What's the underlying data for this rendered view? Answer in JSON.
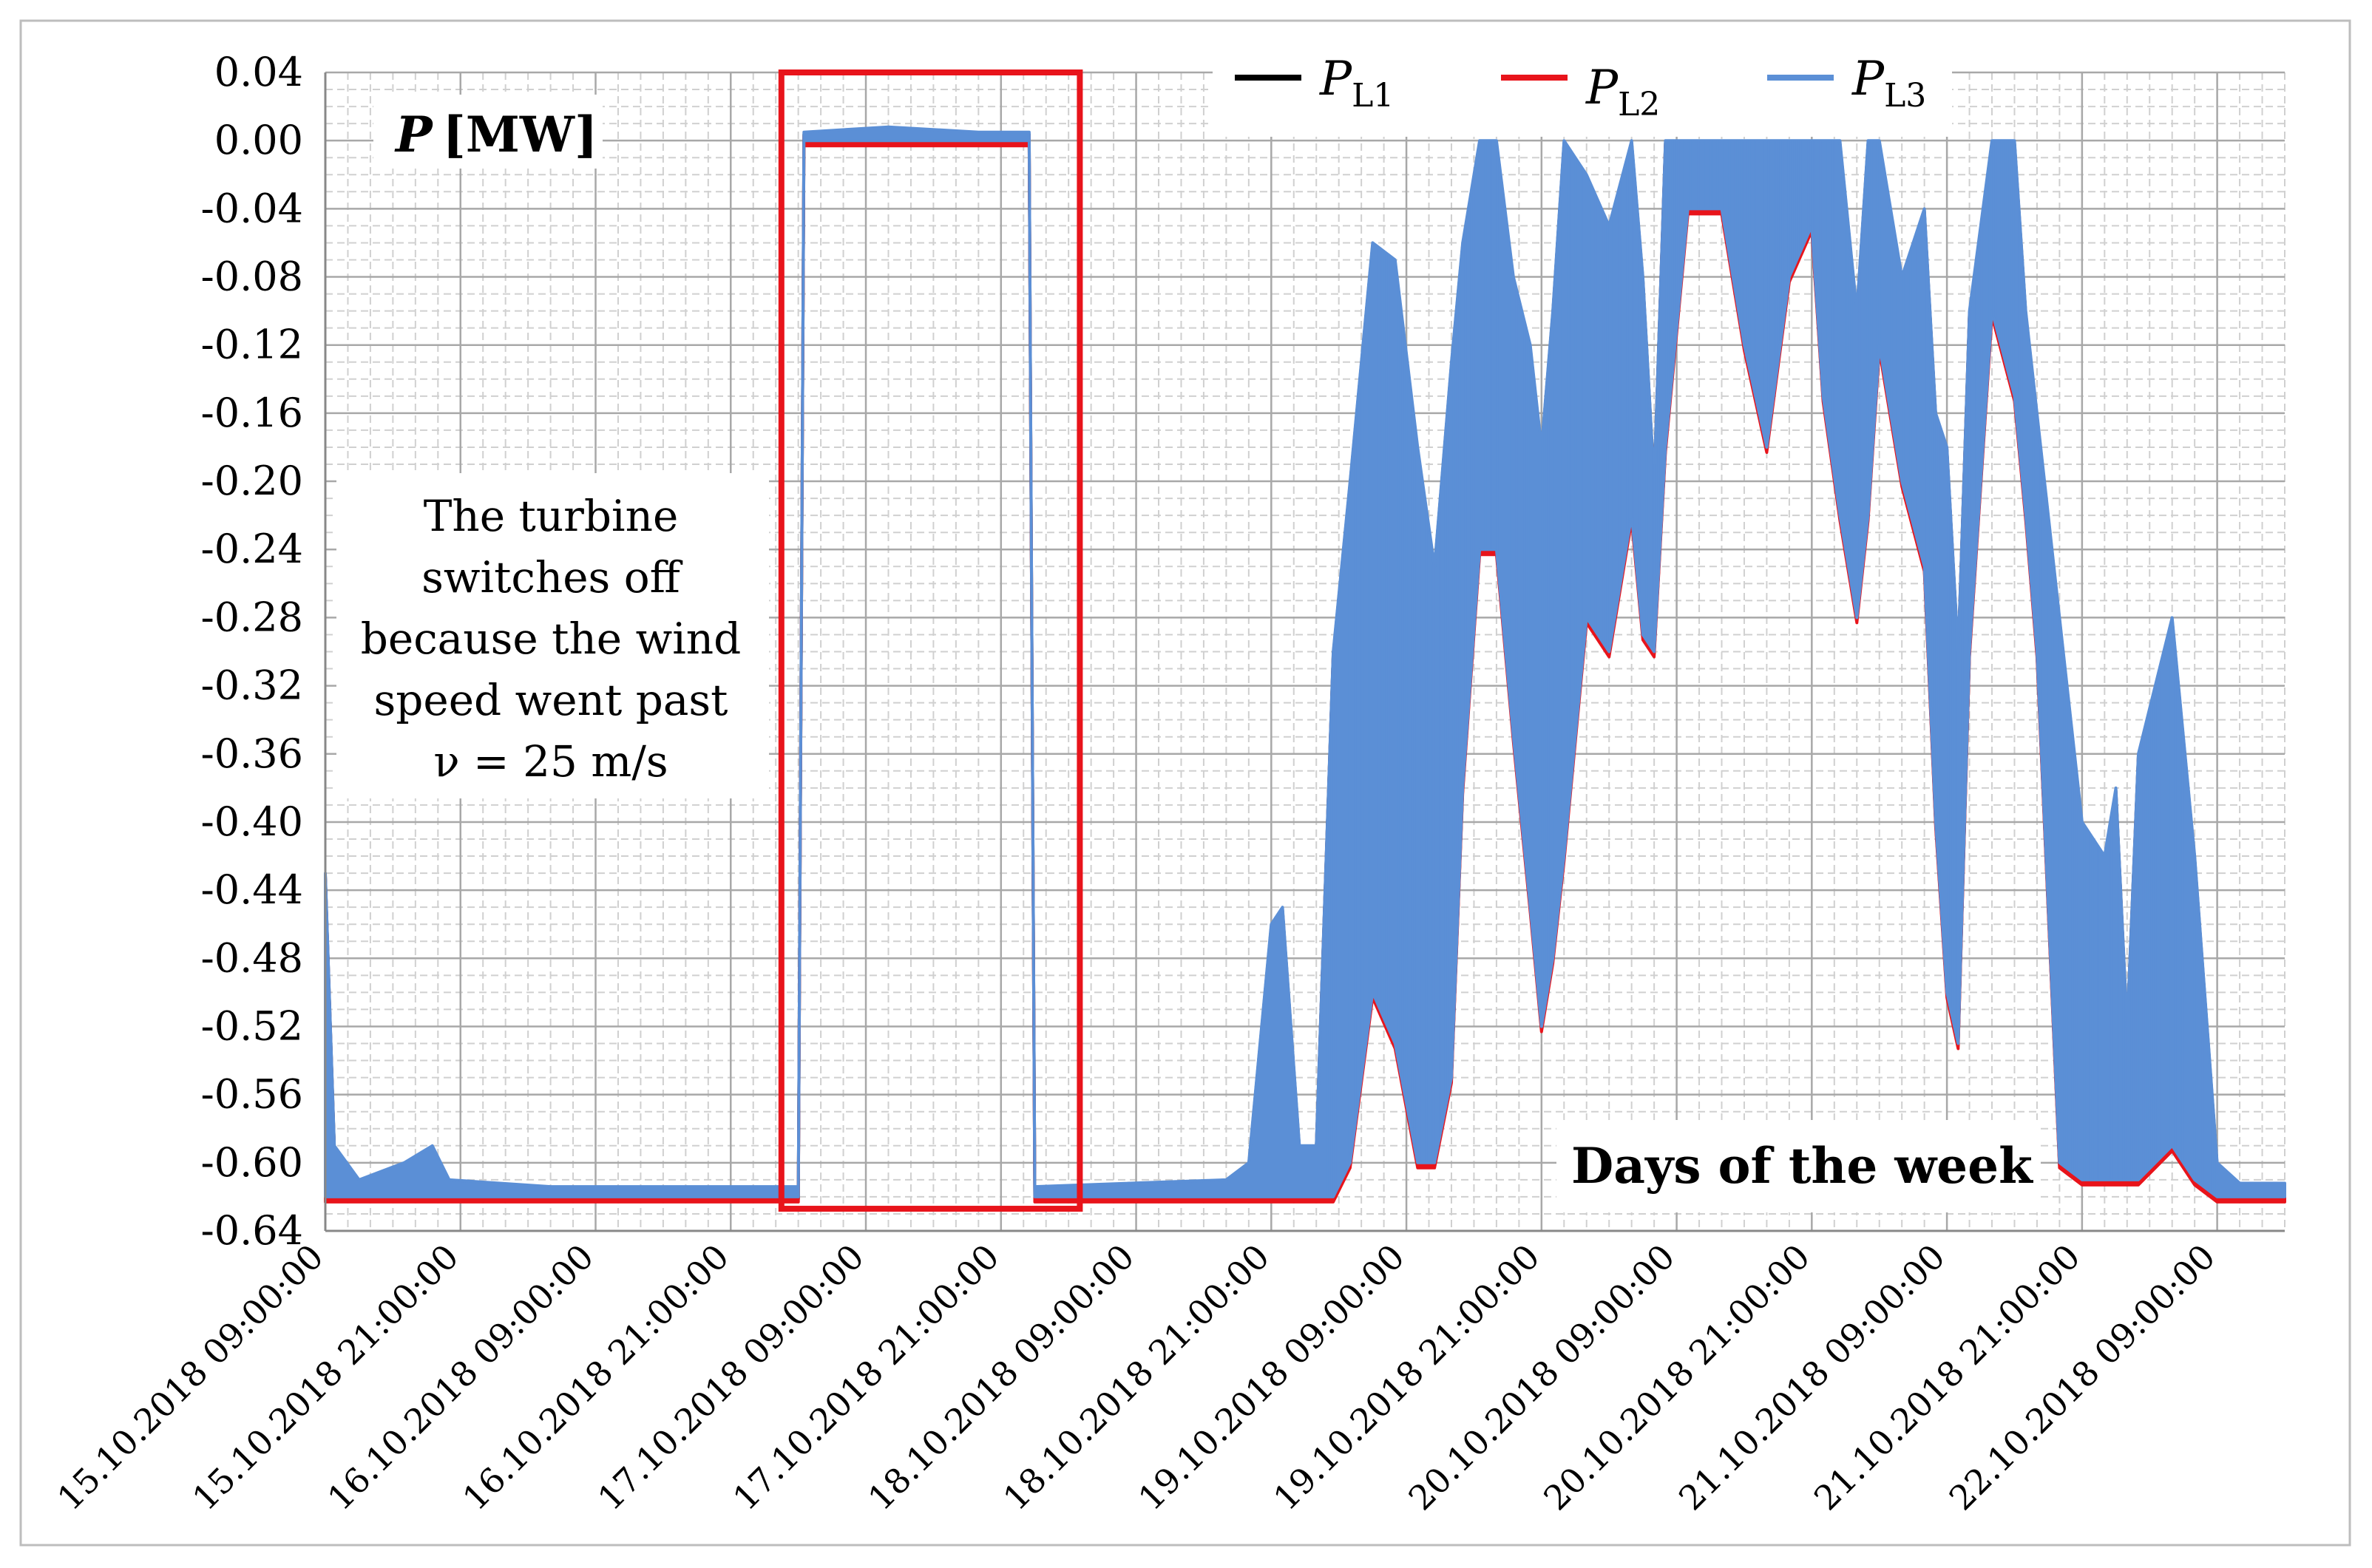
{
  "chart_data": {
    "type": "line",
    "ylabel_prefix": "P",
    "ylabel_unit": "[MW]",
    "xlabel": "Days of the week",
    "ylim": [
      -0.64,
      0.04
    ],
    "y_ticks": [
      "0.04",
      "0.00",
      "-0.04",
      "-0.08",
      "-0.12",
      "-0.16",
      "-0.20",
      "-0.24",
      "-0.28",
      "-0.32",
      "-0.36",
      "-0.40",
      "-0.44",
      "-0.48",
      "-0.52",
      "-0.56",
      "-0.60",
      "-0.64"
    ],
    "x_range_hours": [
      0,
      174
    ],
    "x_tick_hours": [
      0,
      12,
      24,
      36,
      48,
      60,
      72,
      84,
      96,
      108,
      120,
      132,
      144,
      156,
      168
    ],
    "x_tick_labels": [
      "15.10.2018 09:00:00",
      "15.10.2018 21:00:00",
      "16.10.2018 09:00:00",
      "16.10.2018 21:00:00",
      "17.10.2018 09:00:00",
      "17.10.2018 21:00:00",
      "18.10.2018 09:00:00",
      "18.10.2018 21:00:00",
      "19.10.2018 09:00:00",
      "19.10.2018 21:00:00",
      "20.10.2018 09:00:00",
      "20.10.2018 21:00:00",
      "21.10.2018 09:00:00",
      "21.10.2018 21:00:00",
      "22.10.2018 09:00:00"
    ],
    "series": [
      {
        "name": "P_L1",
        "label_main": "P",
        "label_sub": "L1",
        "color": "#000000"
      },
      {
        "name": "P_L2",
        "label_main": "P",
        "label_sub": "L2",
        "color": "#e8141b"
      },
      {
        "name": "P_L3",
        "label_main": "P",
        "label_sub": "L3",
        "color": "#5b8fd6"
      }
    ],
    "envelope": [
      {
        "x": 0,
        "upper": -0.43,
        "lower": -0.62
      },
      {
        "x": 0.8,
        "upper": -0.59,
        "lower": -0.62
      },
      {
        "x": 3,
        "upper": -0.61,
        "lower": -0.62
      },
      {
        "x": 7,
        "upper": -0.6,
        "lower": -0.62
      },
      {
        "x": 9.5,
        "upper": -0.59,
        "lower": -0.62
      },
      {
        "x": 11,
        "upper": -0.61,
        "lower": -0.62
      },
      {
        "x": 20,
        "upper": -0.614,
        "lower": -0.62
      },
      {
        "x": 40,
        "upper": -0.614,
        "lower": -0.62
      },
      {
        "x": 42,
        "upper": -0.614,
        "lower": -0.62
      },
      {
        "x": 42.5,
        "upper": 0.005,
        "lower": 0.0
      },
      {
        "x": 50,
        "upper": 0.008,
        "lower": 0.0
      },
      {
        "x": 58,
        "upper": 0.005,
        "lower": 0.0
      },
      {
        "x": 62.5,
        "upper": 0.005,
        "lower": 0.0
      },
      {
        "x": 63,
        "upper": -0.614,
        "lower": -0.62
      },
      {
        "x": 80,
        "upper": -0.61,
        "lower": -0.62
      },
      {
        "x": 82,
        "upper": -0.6,
        "lower": -0.62
      },
      {
        "x": 84,
        "upper": -0.46,
        "lower": -0.62
      },
      {
        "x": 85,
        "upper": -0.45,
        "lower": -0.62
      },
      {
        "x": 86.5,
        "upper": -0.59,
        "lower": -0.62
      },
      {
        "x": 88,
        "upper": -0.59,
        "lower": -0.62
      },
      {
        "x": 89.5,
        "upper": -0.3,
        "lower": -0.62
      },
      {
        "x": 91,
        "upper": -0.2,
        "lower": -0.6
      },
      {
        "x": 93,
        "upper": -0.06,
        "lower": -0.5
      },
      {
        "x": 95,
        "upper": -0.07,
        "lower": -0.53
      },
      {
        "x": 97,
        "upper": -0.18,
        "lower": -0.6
      },
      {
        "x": 98.5,
        "upper": -0.25,
        "lower": -0.6
      },
      {
        "x": 100,
        "upper": -0.13,
        "lower": -0.55
      },
      {
        "x": 101,
        "upper": -0.06,
        "lower": -0.38
      },
      {
        "x": 102.5,
        "upper": 0.0,
        "lower": -0.24
      },
      {
        "x": 104,
        "upper": 0.0,
        "lower": -0.24
      },
      {
        "x": 105.5,
        "upper": -0.08,
        "lower": -0.35
      },
      {
        "x": 107,
        "upper": -0.12,
        "lower": -0.45
      },
      {
        "x": 108,
        "upper": -0.18,
        "lower": -0.52
      },
      {
        "x": 109,
        "upper": -0.1,
        "lower": -0.48
      },
      {
        "x": 110,
        "upper": 0.0,
        "lower": -0.42
      },
      {
        "x": 112,
        "upper": -0.02,
        "lower": -0.28
      },
      {
        "x": 114,
        "upper": -0.05,
        "lower": -0.3
      },
      {
        "x": 116,
        "upper": 0.0,
        "lower": -0.22
      },
      {
        "x": 117,
        "upper": -0.08,
        "lower": -0.29
      },
      {
        "x": 118,
        "upper": -0.2,
        "lower": -0.3
      },
      {
        "x": 119,
        "upper": 0.0,
        "lower": -0.18
      },
      {
        "x": 121,
        "upper": 0.0,
        "lower": -0.04
      },
      {
        "x": 124,
        "upper": 0.0,
        "lower": -0.04
      },
      {
        "x": 126,
        "upper": 0.0,
        "lower": -0.12
      },
      {
        "x": 128,
        "upper": 0.0,
        "lower": -0.18
      },
      {
        "x": 130,
        "upper": 0.0,
        "lower": -0.08
      },
      {
        "x": 132,
        "upper": 0.0,
        "lower": -0.05
      },
      {
        "x": 133,
        "upper": 0.0,
        "lower": -0.15
      },
      {
        "x": 134.5,
        "upper": 0.0,
        "lower": -0.22
      },
      {
        "x": 136,
        "upper": -0.1,
        "lower": -0.28
      },
      {
        "x": 137,
        "upper": 0.0,
        "lower": -0.22
      },
      {
        "x": 138,
        "upper": 0.0,
        "lower": -0.12
      },
      {
        "x": 140,
        "upper": -0.08,
        "lower": -0.2
      },
      {
        "x": 142,
        "upper": -0.04,
        "lower": -0.25
      },
      {
        "x": 143,
        "upper": -0.16,
        "lower": -0.4
      },
      {
        "x": 144,
        "upper": -0.18,
        "lower": -0.5
      },
      {
        "x": 145,
        "upper": -0.3,
        "lower": -0.53
      },
      {
        "x": 146,
        "upper": -0.1,
        "lower": -0.3
      },
      {
        "x": 148,
        "upper": 0.0,
        "lower": -0.1
      },
      {
        "x": 150,
        "upper": 0.0,
        "lower": -0.15
      },
      {
        "x": 151,
        "upper": -0.1,
        "lower": -0.22
      },
      {
        "x": 152,
        "upper": -0.16,
        "lower": -0.3
      },
      {
        "x": 153,
        "upper": -0.22,
        "lower": -0.45
      },
      {
        "x": 154,
        "upper": -0.28,
        "lower": -0.6
      },
      {
        "x": 156,
        "upper": -0.4,
        "lower": -0.61
      },
      {
        "x": 158,
        "upper": -0.42,
        "lower": -0.61
      },
      {
        "x": 159,
        "upper": -0.38,
        "lower": -0.61
      },
      {
        "x": 160,
        "upper": -0.52,
        "lower": -0.61
      },
      {
        "x": 161,
        "upper": -0.36,
        "lower": -0.61
      },
      {
        "x": 164,
        "upper": -0.28,
        "lower": -0.59
      },
      {
        "x": 166,
        "upper": -0.42,
        "lower": -0.61
      },
      {
        "x": 168,
        "upper": -0.6,
        "lower": -0.62
      },
      {
        "x": 170,
        "upper": -0.612,
        "lower": -0.62
      },
      {
        "x": 174,
        "upper": -0.612,
        "lower": -0.62
      }
    ],
    "highlight_box": {
      "x_start_hours": 40.5,
      "x_end_hours": 67,
      "y_top": 0.04,
      "y_bottom": -0.627
    },
    "annotation_lines": [
      "The turbine",
      "switches off",
      "because the wind",
      "speed went past",
      "ν = 25 m/s"
    ],
    "grid": true
  }
}
